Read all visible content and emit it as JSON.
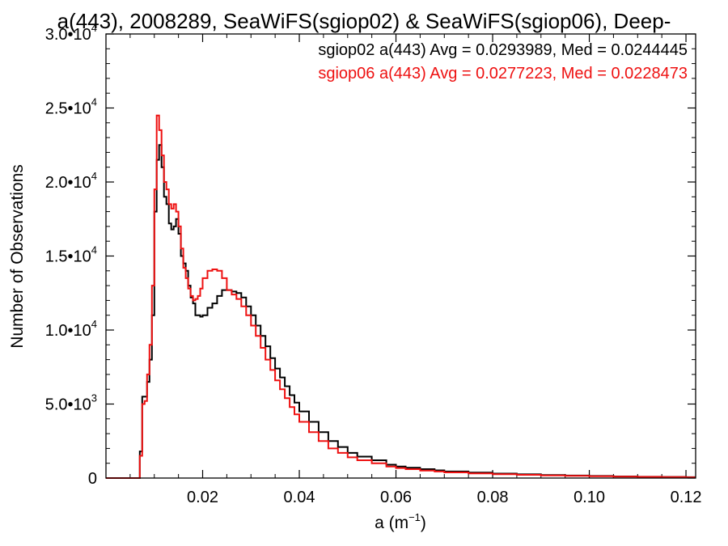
{
  "chart_data": {
    "type": "line",
    "title": "a(443), 2008289, SeaWiFS(sgiop02) & SeaWiFS(sgiop06), Deep-",
    "xlabel": {
      "base": "a (m",
      "exp": "−1",
      "close": ")"
    },
    "ylabel": "Number of Observations",
    "xlim": [
      0.0,
      0.122
    ],
    "ylim": [
      0,
      30000
    ],
    "grid": false,
    "legend_position": "top-right",
    "x_ticks": [
      {
        "value": 0.02,
        "label": "0.02"
      },
      {
        "value": 0.04,
        "label": "0.04"
      },
      {
        "value": 0.06,
        "label": "0.06"
      },
      {
        "value": 0.08,
        "label": "0.08"
      },
      {
        "value": 0.1,
        "label": "0.10"
      },
      {
        "value": 0.12,
        "label": "0.12"
      }
    ],
    "y_ticks": [
      {
        "value": 0,
        "mant": "0",
        "exp": ""
      },
      {
        "value": 5000,
        "mant": "5.0•10",
        "exp": "3"
      },
      {
        "value": 10000,
        "mant": "1.0•10",
        "exp": "4"
      },
      {
        "value": 15000,
        "mant": "1.5•10",
        "exp": "4"
      },
      {
        "value": 20000,
        "mant": "2.0•10",
        "exp": "4"
      },
      {
        "value": 25000,
        "mant": "2.5•10",
        "exp": "4"
      },
      {
        "value": 30000,
        "mant": "3.0•10",
        "exp": "4"
      }
    ],
    "series": [
      {
        "name": "sgiop02",
        "legend": "sgiop02 a(443) Avg = 0.0293989, Med = 0.0244445",
        "color": "#000000",
        "x": [
          0.0,
          0.0065,
          0.007,
          0.0075,
          0.008,
          0.0085,
          0.009,
          0.0095,
          0.01,
          0.0105,
          0.011,
          0.0115,
          0.012,
          0.0125,
          0.013,
          0.0135,
          0.014,
          0.0145,
          0.015,
          0.0155,
          0.016,
          0.0165,
          0.017,
          0.0175,
          0.018,
          0.0185,
          0.019,
          0.0195,
          0.02,
          0.021,
          0.022,
          0.023,
          0.024,
          0.025,
          0.026,
          0.027,
          0.028,
          0.029,
          0.03,
          0.031,
          0.032,
          0.033,
          0.034,
          0.035,
          0.036,
          0.037,
          0.038,
          0.039,
          0.04,
          0.042,
          0.044,
          0.046,
          0.048,
          0.05,
          0.052,
          0.055,
          0.058,
          0.06,
          0.062,
          0.065,
          0.068,
          0.07,
          0.075,
          0.08,
          0.085,
          0.09,
          0.095,
          0.1,
          0.105,
          0.11,
          0.115,
          0.12
        ],
        "y": [
          0,
          0,
          1800,
          5500,
          5500,
          6500,
          8000,
          11000,
          18000,
          21500,
          22500,
          21000,
          19000,
          18500,
          17200,
          16800,
          17000,
          17500,
          16500,
          15000,
          14500,
          14000,
          13000,
          12200,
          11800,
          11000,
          11000,
          10900,
          11000,
          11500,
          11800,
          12300,
          12700,
          12700,
          12600,
          12500,
          12200,
          11600,
          11000,
          10300,
          9600,
          8900,
          8100,
          7400,
          6800,
          6200,
          5600,
          5100,
          4500,
          3800,
          3100,
          2500,
          2100,
          1700,
          1450,
          1200,
          900,
          780,
          700,
          600,
          520,
          440,
          370,
          300,
          250,
          210,
          170,
          140,
          110,
          90,
          75,
          60
        ]
      },
      {
        "name": "sgiop06",
        "legend": "sgiop06 a(443) Avg = 0.0277223, Med = 0.0228473",
        "color": "#ee1111",
        "x": [
          0.0,
          0.0065,
          0.007,
          0.0075,
          0.008,
          0.0085,
          0.009,
          0.0095,
          0.01,
          0.0105,
          0.011,
          0.0115,
          0.012,
          0.0125,
          0.013,
          0.0135,
          0.014,
          0.0145,
          0.015,
          0.0155,
          0.016,
          0.0165,
          0.017,
          0.0175,
          0.018,
          0.0185,
          0.019,
          0.0195,
          0.02,
          0.021,
          0.022,
          0.023,
          0.024,
          0.025,
          0.026,
          0.027,
          0.028,
          0.029,
          0.03,
          0.031,
          0.032,
          0.033,
          0.034,
          0.035,
          0.036,
          0.037,
          0.038,
          0.039,
          0.04,
          0.042,
          0.044,
          0.046,
          0.048,
          0.05,
          0.052,
          0.055,
          0.058,
          0.06,
          0.062,
          0.065,
          0.068,
          0.07,
          0.075,
          0.08,
          0.085,
          0.09,
          0.095,
          0.1,
          0.105,
          0.11,
          0.115,
          0.12
        ],
        "y": [
          0,
          0,
          1500,
          5000,
          5200,
          7000,
          9000,
          13000,
          19500,
          24500,
          23500,
          21800,
          20000,
          19500,
          18500,
          18200,
          18500,
          18000,
          17000,
          15500,
          14200,
          13500,
          12800,
          12300,
          12000,
          12100,
          12300,
          12800,
          13500,
          14000,
          14100,
          14000,
          13500,
          12700,
          12400,
          12100,
          11600,
          11000,
          10300,
          9600,
          8800,
          8000,
          7300,
          6600,
          6000,
          5400,
          4800,
          4300,
          3800,
          3100,
          2500,
          2000,
          1700,
          1400,
          1200,
          1000,
          780,
          680,
          600,
          510,
          440,
          380,
          310,
          260,
          220,
          180,
          150,
          120,
          100,
          80,
          65,
          50
        ]
      }
    ]
  }
}
